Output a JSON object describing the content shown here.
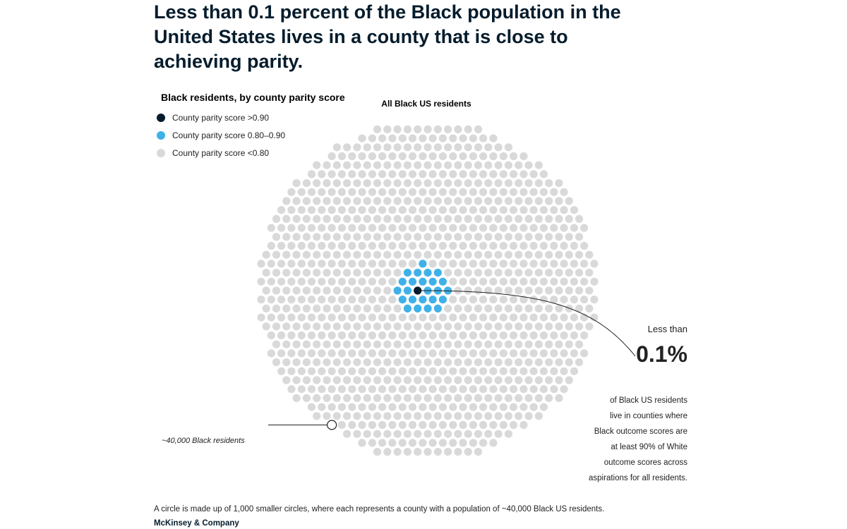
{
  "title": "Less than 0.1 percent of the Black population in the United States lives in a county that is close to achieving parity.",
  "legend": {
    "title": "Black residents, by county parity score",
    "items": [
      {
        "label": "County parity score >0.90",
        "color": "#051c2c"
      },
      {
        "label": "County parity score 0.80–0.90",
        "color": "#3fb1e8"
      },
      {
        "label": "County parity score <0.80",
        "color": "#d9d9d9"
      }
    ]
  },
  "chart_data": {
    "type": "dot-matrix",
    "title": "All Black US residents",
    "unit_label": "~40,000 Black residents",
    "categories": [
      "County parity score >0.90",
      "County parity score 0.80–0.90",
      "County parity score <0.80"
    ],
    "counts": [
      1,
      24,
      975
    ],
    "colors": [
      "#051c2c",
      "#3fb1e8",
      "#d9d9d9"
    ]
  },
  "annotation": {
    "prefix": "Less than",
    "value": "0.1%",
    "lines": [
      "of Black US residents",
      "live in counties where",
      "Black outcome scores are",
      "at least 90% of White",
      "outcome scores across",
      "aspirations for all residents."
    ]
  },
  "footnote": "A circle is made up of 1,000 smaller circles, where each represents a county with a population of ~40,000 Black US residents.",
  "source": "McKinsey & Company"
}
